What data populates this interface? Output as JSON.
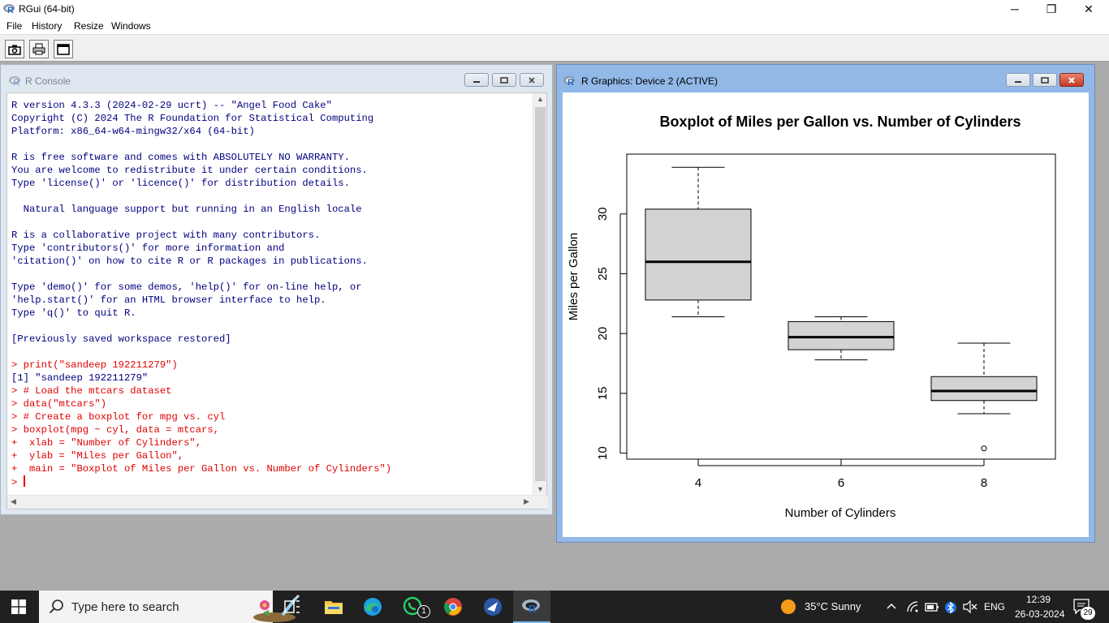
{
  "app": {
    "title": "RGui (64-bit)"
  },
  "window_controls": {
    "minimize": "─",
    "maximize": "❐",
    "close": "✕"
  },
  "menu": [
    "File",
    "History",
    "Resize",
    "Windows"
  ],
  "toolbar_icons": [
    "camera-icon",
    "print-icon",
    "window-icon"
  ],
  "console": {
    "title": "R Console",
    "lines": [
      {
        "text": "R version 4.3.3 (2024-02-29 ucrt) -- \"Angel Food Cake\"",
        "kind": "out"
      },
      {
        "text": "Copyright (C) 2024 The R Foundation for Statistical Computing",
        "kind": "out"
      },
      {
        "text": "Platform: x86_64-w64-mingw32/x64 (64-bit)",
        "kind": "out"
      },
      {
        "text": "",
        "kind": "out"
      },
      {
        "text": "R is free software and comes with ABSOLUTELY NO WARRANTY.",
        "kind": "out"
      },
      {
        "text": "You are welcome to redistribute it under certain conditions.",
        "kind": "out"
      },
      {
        "text": "Type 'license()' or 'licence()' for distribution details.",
        "kind": "out"
      },
      {
        "text": "",
        "kind": "out"
      },
      {
        "text": "  Natural language support but running in an English locale",
        "kind": "out"
      },
      {
        "text": "",
        "kind": "out"
      },
      {
        "text": "R is a collaborative project with many contributors.",
        "kind": "out"
      },
      {
        "text": "Type 'contributors()' for more information and",
        "kind": "out"
      },
      {
        "text": "'citation()' on how to cite R or R packages in publications.",
        "kind": "out"
      },
      {
        "text": "",
        "kind": "out"
      },
      {
        "text": "Type 'demo()' for some demos, 'help()' for on-line help, or",
        "kind": "out"
      },
      {
        "text": "'help.start()' for an HTML browser interface to help.",
        "kind": "out"
      },
      {
        "text": "Type 'q()' to quit R.",
        "kind": "out"
      },
      {
        "text": "",
        "kind": "out"
      },
      {
        "text": "[Previously saved workspace restored]",
        "kind": "out"
      },
      {
        "text": "",
        "kind": "out"
      },
      {
        "text": "> print(\"sandeep 192211279\")",
        "kind": "in"
      },
      {
        "text": "[1] \"sandeep 192211279\"",
        "kind": "out"
      },
      {
        "text": "> # Load the mtcars dataset",
        "kind": "in"
      },
      {
        "text": "> data(\"mtcars\")",
        "kind": "in"
      },
      {
        "text": "> # Create a boxplot for mpg vs. cyl",
        "kind": "in"
      },
      {
        "text": "> boxplot(mpg ~ cyl, data = mtcars,",
        "kind": "in"
      },
      {
        "text": "+  xlab = \"Number of Cylinders\",",
        "kind": "in"
      },
      {
        "text": "+  ylab = \"Miles per Gallon\",",
        "kind": "in"
      },
      {
        "text": "+  main = \"Boxplot of Miles per Gallon vs. Number of Cylinders\")",
        "kind": "in"
      },
      {
        "text": "> ",
        "kind": "in"
      }
    ]
  },
  "graphics": {
    "title": "R Graphics: Device 2 (ACTIVE)"
  },
  "chart_data": {
    "type": "boxplot",
    "title": "Boxplot of Miles per Gallon vs. Number of Cylinders",
    "xlabel": "Number of Cylinders",
    "ylabel": "Miles per Gallon",
    "categories": [
      "4",
      "6",
      "8"
    ],
    "boxes": [
      {
        "category": "4",
        "whisker_low": 21.4,
        "q1": 22.8,
        "median": 26.0,
        "q3": 30.4,
        "whisker_high": 33.9,
        "outliers": []
      },
      {
        "category": "6",
        "whisker_low": 17.8,
        "q1": 18.65,
        "median": 19.7,
        "q3": 21.0,
        "whisker_high": 21.4,
        "outliers": []
      },
      {
        "category": "8",
        "whisker_low": 13.3,
        "q1": 14.4,
        "median": 15.2,
        "q3": 16.4,
        "whisker_high": 19.2,
        "outliers": [
          10.4
        ]
      }
    ],
    "yticks": [
      10,
      15,
      20,
      25,
      30
    ],
    "ylim": [
      9.5,
      35
    ],
    "box_fill": "#d3d3d3"
  },
  "taskbar": {
    "search_placeholder": "Type here to search",
    "weather": "35°C  Sunny",
    "language": "ENG",
    "time": "12:39",
    "date": "26-03-2024",
    "whatsapp_badge": "1",
    "notification_count": "29"
  }
}
